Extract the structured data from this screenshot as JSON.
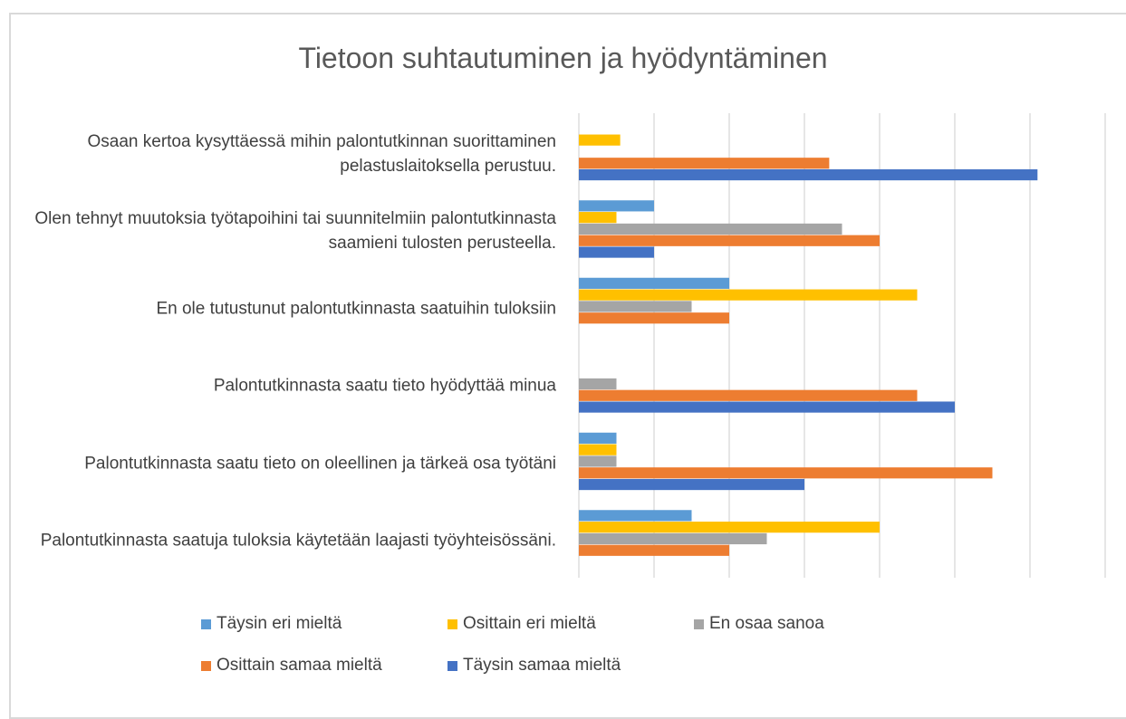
{
  "chart_data": {
    "type": "hbar",
    "title": "Tietoon suhtautuminen ja hyödyntäminen",
    "categories": [
      "Osaan kertoa kysyttäessä mihin palontutkinnan suorittaminen pelastuslaitoksella perustuu.",
      "Olen tehnyt muutoksia työtapoihini tai suunnitelmiin palontutkinnasta saamieni tulosten perusteella.",
      "En ole tutustunut palontutkinnasta saatuihin tuloksiin",
      "Palontutkinnasta saatu tieto hyödyttää minua",
      "Palontutkinnasta saatu tieto on oleellinen ja tärkeä osa työtäni",
      "Palontutkinnasta saatuja tuloksia käytetään laajasti työyhteisössäni."
    ],
    "series": [
      {
        "name": "Täysin eri mieltä",
        "color": "#5b9bd5",
        "values": [
          null,
          1,
          2,
          null,
          0.5,
          1.5
        ]
      },
      {
        "name": "Osittain eri mieltä",
        "color": "#ffc000",
        "values": [
          0.55,
          0.5,
          4.5,
          null,
          0.5,
          4
        ]
      },
      {
        "name": "En osaa sanoa",
        "color": "#a5a5a5",
        "values": [
          null,
          3.5,
          1.5,
          0.5,
          0.5,
          2.5
        ]
      },
      {
        "name": "Osittain samaa mieltä",
        "color": "#ed7d31",
        "values": [
          3.33,
          4,
          2,
          4.5,
          5.5,
          2
        ]
      },
      {
        "name": "Täysin samaa mieltä",
        "color": "#4472c4",
        "values": [
          6.1,
          1,
          null,
          5,
          3,
          null
        ]
      }
    ],
    "xlim": [
      0,
      7
    ],
    "xticks": [
      0,
      1,
      2,
      3,
      4,
      5,
      6,
      7
    ],
    "grid": true,
    "legend": "bottom"
  }
}
